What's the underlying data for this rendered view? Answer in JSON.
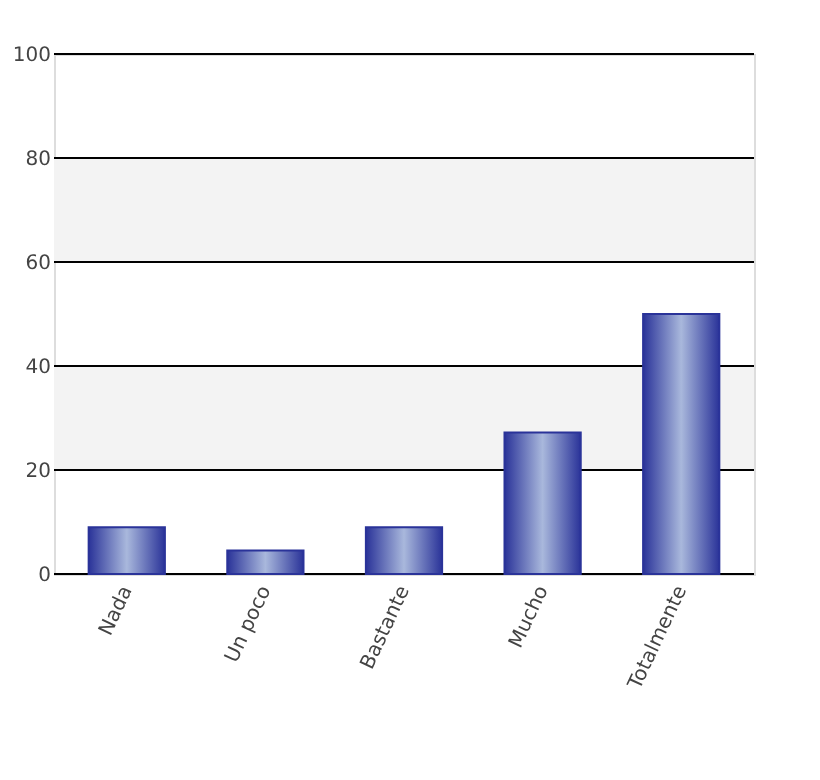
{
  "chart_data": {
    "type": "bar",
    "categories": [
      "Nada",
      "Un poco",
      "Bastante",
      "Mucho",
      "Totalmente"
    ],
    "values": [
      9,
      4.5,
      9,
      27.2,
      50
    ],
    "color": "#2a3399",
    "ylim": [
      0,
      100
    ],
    "yticks": [
      0,
      20,
      40,
      60,
      80,
      100
    ],
    "grid": "y",
    "bands": [
      {
        "axis": "y",
        "from": 20,
        "to": 40,
        "color": "#f3f3f3"
      },
      {
        "axis": "y",
        "from": 60,
        "to": 80,
        "color": "#f3f3f3"
      }
    ]
  }
}
